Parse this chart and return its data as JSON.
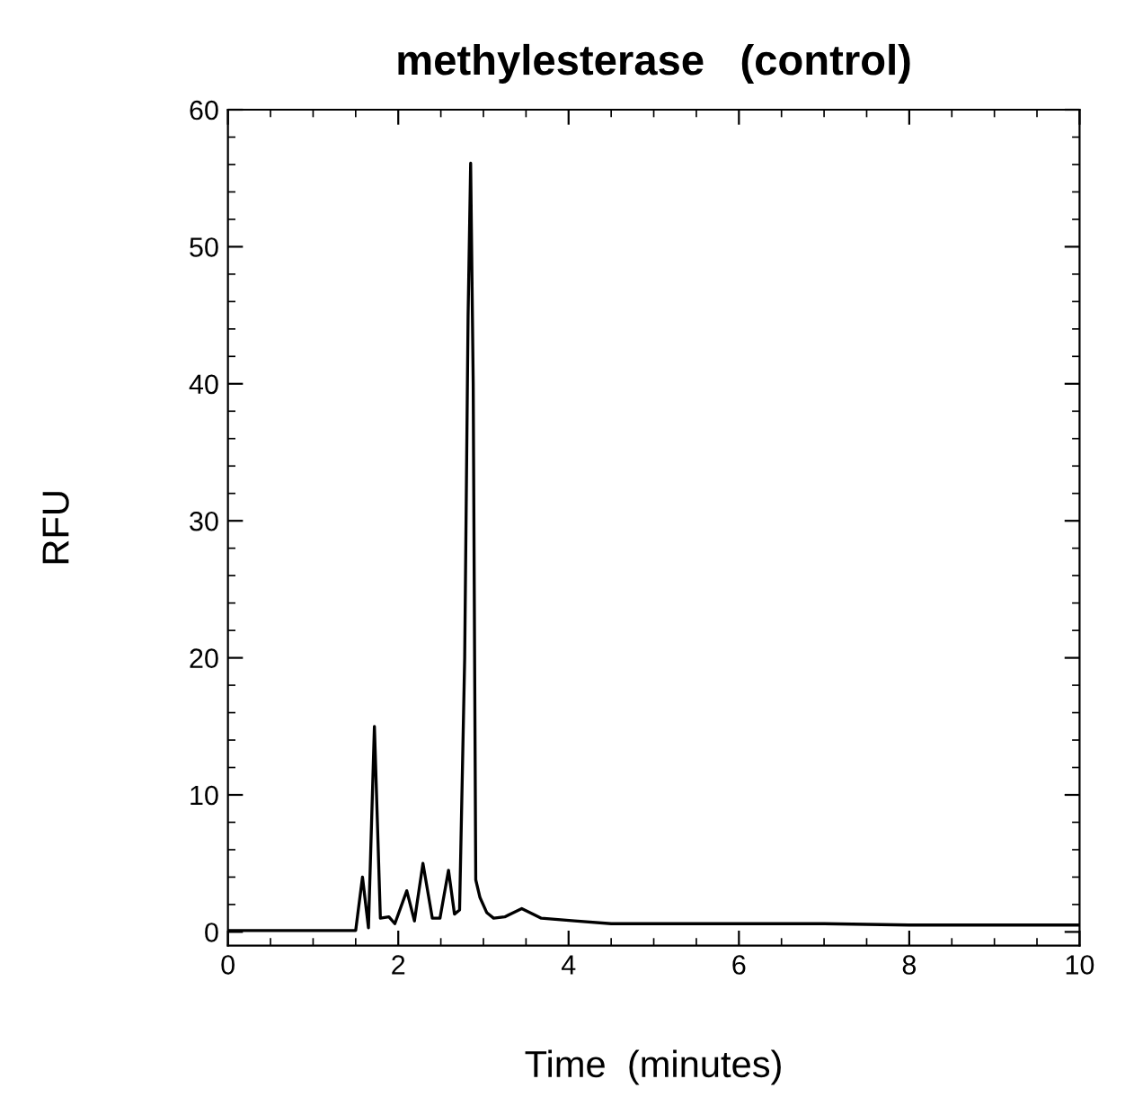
{
  "chart_data": {
    "type": "line",
    "title": "methylesterase   (control)",
    "xlabel": "Time  (minutes)",
    "ylabel": "RFU",
    "x": [
      0,
      0.5,
      1.0,
      1.5,
      1.58,
      1.65,
      1.72,
      1.79,
      1.89,
      1.96,
      2.1,
      2.19,
      2.29,
      2.4,
      2.49,
      2.59,
      2.66,
      2.72,
      2.78,
      2.82,
      2.85,
      2.88,
      2.91,
      2.96,
      3.04,
      3.12,
      3.25,
      3.45,
      3.68,
      4.07,
      4.5,
      5.05,
      6.0,
      7.0,
      8.0,
      9.0,
      10.0
    ],
    "values": [
      0.1,
      0.1,
      0.1,
      0.1,
      4.0,
      0.3,
      15.0,
      1.0,
      1.1,
      0.6,
      3.0,
      0.8,
      5.0,
      1.0,
      1.0,
      4.5,
      1.3,
      1.6,
      20,
      45,
      56.1,
      40,
      3.8,
      2.5,
      1.4,
      1.0,
      1.1,
      1.7,
      1.0,
      0.8,
      0.6,
      0.6,
      0.6,
      0.6,
      0.5,
      0.5,
      0.5
    ],
    "color": "#000000",
    "xlim": [
      0,
      10
    ],
    "xticks": [
      0,
      2,
      4,
      6,
      8,
      10
    ],
    "ylim": [
      -1,
      60
    ],
    "yticks": [
      0,
      10,
      20,
      30,
      40,
      50,
      60
    ],
    "grid": false,
    "legend": false
  }
}
